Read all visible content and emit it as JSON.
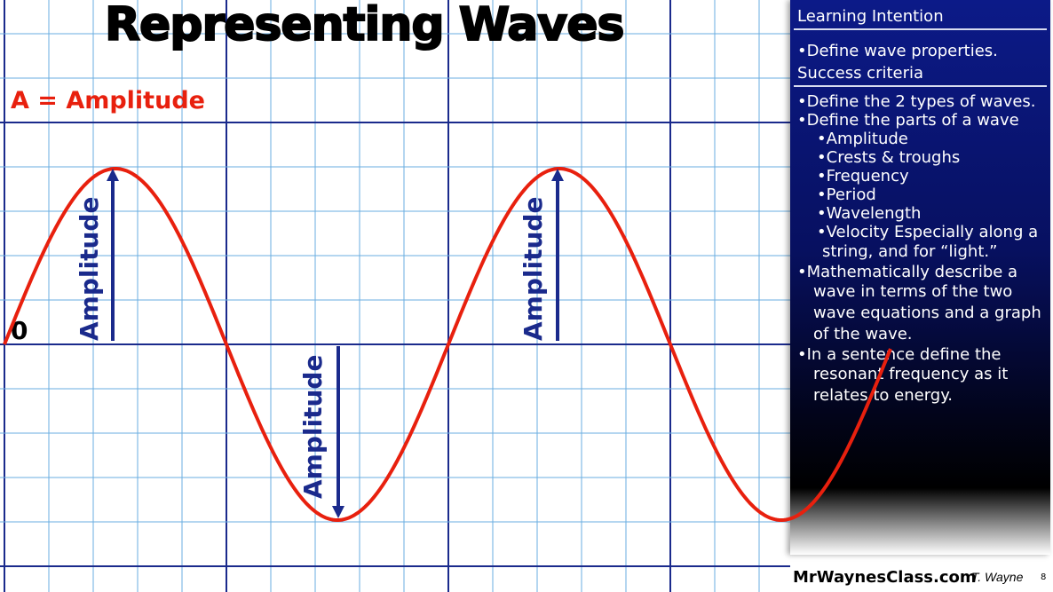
{
  "title": "Representing Waves",
  "definition": "A = Amplitude",
  "origin_label": "0",
  "amplitude_labels": [
    "Amplitude",
    "Amplitude",
    "Amplitude"
  ],
  "panel": {
    "heading1": "Learning Intention",
    "intention": "Define wave properties.",
    "heading2": "Success criteria",
    "criteria": [
      "Define the 2 types of waves.",
      "Define the parts of a wave",
      "Amplitude",
      "Crests & troughs",
      "Frequency",
      "Period",
      "Wavelength",
      "Velocity Especially along a",
      "string, and for “light.”",
      "Mathematically describe a",
      "wave in terms of the two",
      "wave equations and a graph",
      "of the wave.",
      "In a sentence define the",
      "resonant frequency as it",
      "relates to energy."
    ]
  },
  "footer": {
    "site": "MrWaynesClass.com",
    "author": "T. Wayne",
    "page": "8"
  },
  "colors": {
    "wave": "#e8200e",
    "arrow": "#1a2a8c",
    "grid_major": "#1a2a8c",
    "grid_minor": "#6aaee0"
  }
}
